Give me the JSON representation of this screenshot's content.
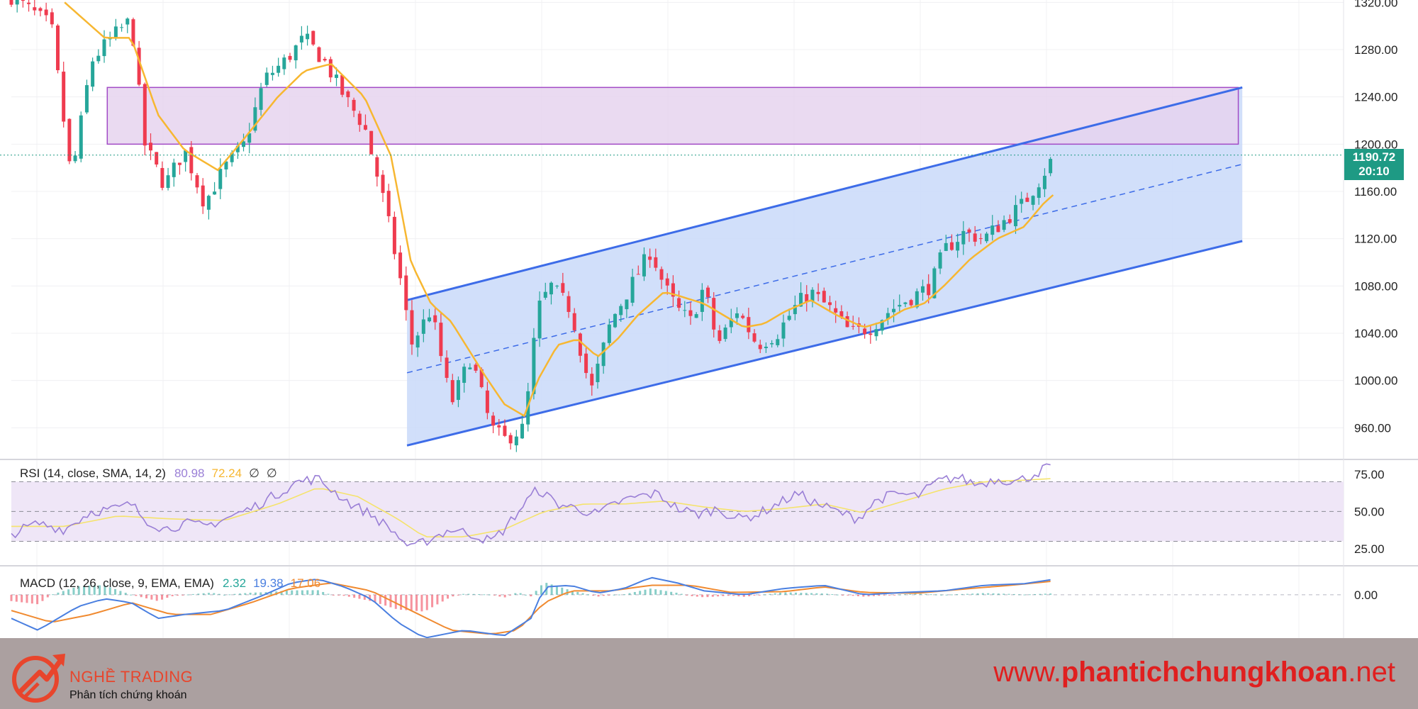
{
  "colors": {
    "up": "#26a69a",
    "down": "#ef3b4f",
    "sma": "#f7b731",
    "channel_line": "#3d6ce8",
    "channel_fill": "#c9d9f9",
    "zone_fill": "#e6d3ef",
    "zone_border": "#a24bc6",
    "rsi_line": "#9a7fd6",
    "rsi_ma": "#f5e36b",
    "rsi_band": "#efe6f7",
    "macd_line": "#4a7fe0",
    "macd_signal": "#f08a30",
    "price_badge": "#1e9a84"
  },
  "chart_data": [
    {
      "type": "candlestick",
      "title": "",
      "ylim": [
        935,
        1322
      ],
      "y_ticks": [
        "1320.00",
        "1280.00",
        "1240.00",
        "1200.00",
        "1160.00",
        "1120.00",
        "1080.00",
        "1040.00",
        "1000.00",
        "960.00"
      ],
      "last_price": "1190.72",
      "countdown": "20:10",
      "resistance_zone": [
        1200,
        1248
      ],
      "channel": {
        "upper": [
          [
            0.297,
            1068
          ],
          [
            0.924,
            1248
          ]
        ],
        "lower": [
          [
            0.297,
            945
          ],
          [
            0.924,
            1118
          ]
        ]
      },
      "close_anchors": [
        [
          0.0,
          1325
        ],
        [
          0.03,
          1300
        ],
        [
          0.045,
          1170
        ],
        [
          0.06,
          1270
        ],
        [
          0.075,
          1290
        ],
        [
          0.09,
          1305
        ],
        [
          0.1,
          1200
        ],
        [
          0.115,
          1165
        ],
        [
          0.13,
          1195
        ],
        [
          0.145,
          1150
        ],
        [
          0.16,
          1180
        ],
        [
          0.175,
          1200
        ],
        [
          0.19,
          1255
        ],
        [
          0.205,
          1270
        ],
        [
          0.22,
          1290
        ],
        [
          0.235,
          1270
        ],
        [
          0.25,
          1240
        ],
        [
          0.265,
          1215
        ],
        [
          0.28,
          1150
        ],
        [
          0.293,
          1080
        ],
        [
          0.3,
          1030
        ],
        [
          0.315,
          1060
        ],
        [
          0.33,
          980
        ],
        [
          0.345,
          1020
        ],
        [
          0.36,
          960
        ],
        [
          0.37,
          950
        ],
        [
          0.385,
          960
        ],
        [
          0.395,
          1060
        ],
        [
          0.405,
          1080
        ],
        [
          0.42,
          1060
        ],
        [
          0.435,
          990
        ],
        [
          0.45,
          1050
        ],
        [
          0.465,
          1080
        ],
        [
          0.48,
          1110
        ],
        [
          0.49,
          1080
        ],
        [
          0.5,
          1060
        ],
        [
          0.51,
          1050
        ],
        [
          0.52,
          1080
        ],
        [
          0.53,
          1030
        ],
        [
          0.545,
          1060
        ],
        [
          0.56,
          1030
        ],
        [
          0.575,
          1040
        ],
        [
          0.59,
          1065
        ],
        [
          0.6,
          1075
        ],
        [
          0.615,
          1060
        ],
        [
          0.63,
          1040
        ],
        [
          0.645,
          1045
        ],
        [
          0.66,
          1060
        ],
        [
          0.675,
          1070
        ],
        [
          0.69,
          1080
        ],
        [
          0.7,
          1110
        ],
        [
          0.715,
          1125
        ],
        [
          0.73,
          1120
        ],
        [
          0.745,
          1135
        ],
        [
          0.76,
          1150
        ],
        [
          0.772,
          1170
        ],
        [
          0.78,
          1185
        ]
      ],
      "sma_anchors": [
        [
          0.04,
          1320
        ],
        [
          0.07,
          1290
        ],
        [
          0.09,
          1290
        ],
        [
          0.11,
          1225
        ],
        [
          0.13,
          1195
        ],
        [
          0.155,
          1178
        ],
        [
          0.175,
          1205
        ],
        [
          0.2,
          1240
        ],
        [
          0.22,
          1262
        ],
        [
          0.24,
          1268
        ],
        [
          0.265,
          1240
        ],
        [
          0.285,
          1190
        ],
        [
          0.3,
          1100
        ],
        [
          0.315,
          1065
        ],
        [
          0.33,
          1050
        ],
        [
          0.355,
          1005
        ],
        [
          0.37,
          980
        ],
        [
          0.385,
          970
        ],
        [
          0.395,
          1000
        ],
        [
          0.41,
          1030
        ],
        [
          0.425,
          1035
        ],
        [
          0.44,
          1020
        ],
        [
          0.455,
          1035
        ],
        [
          0.47,
          1055
        ],
        [
          0.49,
          1075
        ],
        [
          0.5,
          1072
        ],
        [
          0.52,
          1065
        ],
        [
          0.535,
          1055
        ],
        [
          0.55,
          1045
        ],
        [
          0.565,
          1048
        ],
        [
          0.58,
          1058
        ],
        [
          0.6,
          1068
        ],
        [
          0.62,
          1055
        ],
        [
          0.64,
          1045
        ],
        [
          0.655,
          1050
        ],
        [
          0.67,
          1060
        ],
        [
          0.685,
          1065
        ],
        [
          0.7,
          1080
        ],
        [
          0.72,
          1103
        ],
        [
          0.74,
          1120
        ],
        [
          0.76,
          1130
        ],
        [
          0.775,
          1150
        ],
        [
          0.782,
          1157
        ]
      ]
    },
    {
      "type": "line",
      "name": "RSI",
      "legend": "RSI (14, close, SMA, 14, 2)",
      "value1": "80.98",
      "value2": "72.24",
      "value3": "∅",
      "value4": "∅",
      "y_ticks": [
        "75.00",
        "50.00",
        "25.00"
      ],
      "ylim": [
        15,
        83
      ],
      "band": [
        30,
        70
      ],
      "midline": 50,
      "rsi_anchors": [
        [
          0.0,
          35
        ],
        [
          0.02,
          42
        ],
        [
          0.04,
          38
        ],
        [
          0.06,
          50
        ],
        [
          0.08,
          52
        ],
        [
          0.09,
          55
        ],
        [
          0.1,
          45
        ],
        [
          0.115,
          38
        ],
        [
          0.13,
          42
        ],
        [
          0.145,
          40
        ],
        [
          0.16,
          45
        ],
        [
          0.18,
          52
        ],
        [
          0.2,
          62
        ],
        [
          0.215,
          70
        ],
        [
          0.23,
          72
        ],
        [
          0.24,
          65
        ],
        [
          0.255,
          55
        ],
        [
          0.27,
          48
        ],
        [
          0.285,
          38
        ],
        [
          0.3,
          25
        ],
        [
          0.315,
          32
        ],
        [
          0.33,
          38
        ],
        [
          0.345,
          35
        ],
        [
          0.36,
          30
        ],
        [
          0.37,
          38
        ],
        [
          0.385,
          55
        ],
        [
          0.395,
          65
        ],
        [
          0.41,
          55
        ],
        [
          0.425,
          52
        ],
        [
          0.44,
          48
        ],
        [
          0.455,
          56
        ],
        [
          0.47,
          60
        ],
        [
          0.485,
          62
        ],
        [
          0.5,
          52
        ],
        [
          0.515,
          48
        ],
        [
          0.53,
          52
        ],
        [
          0.545,
          45
        ],
        [
          0.56,
          48
        ],
        [
          0.575,
          55
        ],
        [
          0.59,
          62
        ],
        [
          0.605,
          55
        ],
        [
          0.62,
          50
        ],
        [
          0.635,
          45
        ],
        [
          0.65,
          58
        ],
        [
          0.665,
          62
        ],
        [
          0.68,
          60
        ],
        [
          0.695,
          70
        ],
        [
          0.71,
          73
        ],
        [
          0.725,
          68
        ],
        [
          0.74,
          72
        ],
        [
          0.755,
          70
        ],
        [
          0.77,
          76
        ],
        [
          0.78,
          81
        ]
      ],
      "rsi_ma_anchors": [
        [
          0.0,
          40
        ],
        [
          0.04,
          40
        ],
        [
          0.08,
          47
        ],
        [
          0.12,
          45
        ],
        [
          0.16,
          44
        ],
        [
          0.2,
          55
        ],
        [
          0.23,
          66
        ],
        [
          0.26,
          60
        ],
        [
          0.29,
          45
        ],
        [
          0.31,
          33
        ],
        [
          0.34,
          33
        ],
        [
          0.37,
          38
        ],
        [
          0.4,
          50
        ],
        [
          0.43,
          55
        ],
        [
          0.46,
          55
        ],
        [
          0.49,
          57
        ],
        [
          0.52,
          53
        ],
        [
          0.55,
          50
        ],
        [
          0.58,
          52
        ],
        [
          0.61,
          55
        ],
        [
          0.64,
          49
        ],
        [
          0.67,
          57
        ],
        [
          0.7,
          65
        ],
        [
          0.73,
          70
        ],
        [
          0.76,
          71
        ],
        [
          0.78,
          72
        ]
      ]
    },
    {
      "type": "line",
      "name": "MACD",
      "legend": "MACD (12, 26, close, 9, EMA, EMA)",
      "value1": "2.32",
      "value2": "19.38",
      "value3": "17.06",
      "y_ticks": [
        "0.00"
      ],
      "ylim": [
        -55,
        35
      ],
      "macd_anchors": [
        [
          0.0,
          -30
        ],
        [
          0.02,
          -45
        ],
        [
          0.05,
          -15
        ],
        [
          0.07,
          -5
        ],
        [
          0.09,
          -10
        ],
        [
          0.11,
          -30
        ],
        [
          0.13,
          -25
        ],
        [
          0.16,
          -20
        ],
        [
          0.19,
          0
        ],
        [
          0.21,
          15
        ],
        [
          0.23,
          20
        ],
        [
          0.25,
          10
        ],
        [
          0.27,
          -5
        ],
        [
          0.29,
          -35
        ],
        [
          0.31,
          -55
        ],
        [
          0.34,
          -45
        ],
        [
          0.37,
          -52
        ],
        [
          0.39,
          -30
        ],
        [
          0.4,
          10
        ],
        [
          0.42,
          12
        ],
        [
          0.44,
          2
        ],
        [
          0.46,
          8
        ],
        [
          0.48,
          22
        ],
        [
          0.5,
          15
        ],
        [
          0.52,
          5
        ],
        [
          0.55,
          0
        ],
        [
          0.58,
          8
        ],
        [
          0.61,
          12
        ],
        [
          0.64,
          0
        ],
        [
          0.67,
          3
        ],
        [
          0.7,
          5
        ],
        [
          0.73,
          12
        ],
        [
          0.76,
          14
        ],
        [
          0.78,
          19
        ]
      ],
      "signal_anchors": [
        [
          0.0,
          -20
        ],
        [
          0.03,
          -35
        ],
        [
          0.06,
          -25
        ],
        [
          0.09,
          -10
        ],
        [
          0.12,
          -25
        ],
        [
          0.15,
          -25
        ],
        [
          0.18,
          -10
        ],
        [
          0.21,
          8
        ],
        [
          0.24,
          15
        ],
        [
          0.27,
          5
        ],
        [
          0.3,
          -20
        ],
        [
          0.33,
          -45
        ],
        [
          0.36,
          -50
        ],
        [
          0.38,
          -45
        ],
        [
          0.4,
          -10
        ],
        [
          0.42,
          5
        ],
        [
          0.45,
          5
        ],
        [
          0.48,
          12
        ],
        [
          0.51,
          12
        ],
        [
          0.54,
          3
        ],
        [
          0.58,
          4
        ],
        [
          0.61,
          10
        ],
        [
          0.64,
          3
        ],
        [
          0.68,
          2
        ],
        [
          0.72,
          8
        ],
        [
          0.75,
          12
        ],
        [
          0.78,
          17
        ]
      ]
    }
  ],
  "branding": {
    "name": "NGHỀ TRADING",
    "tagline": "Phân tích chứng khoán",
    "url_prefix": "www.",
    "url_main": "phantichchungkhoan",
    "url_suffix": ".net"
  }
}
